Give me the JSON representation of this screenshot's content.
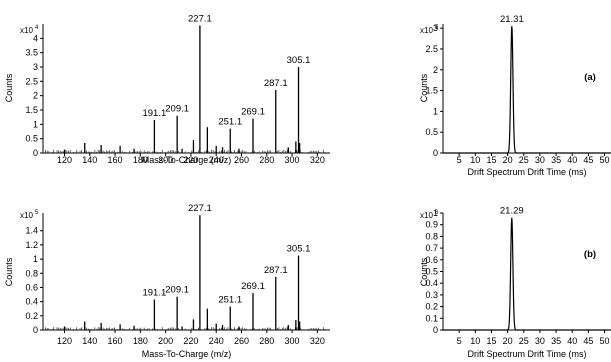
{
  "chart_data": [
    {
      "type": "bar",
      "panel": "a",
      "kind": "mass-spectrum",
      "multiplier": "x10",
      "multiplier_exp": "4",
      "ylabel": "Counts",
      "xlabel": "Mass-To-Charge (m/z)",
      "xlim": [
        103,
        330
      ],
      "ylim": [
        0,
        4.5
      ],
      "yticks": [
        0,
        0.5,
        1,
        1.5,
        2,
        2.5,
        3,
        3.5,
        4
      ],
      "ytick_labels": [
        "0",
        "0.5",
        "1",
        "1.5",
        "2",
        "2.5",
        "3",
        "3.5",
        "4"
      ],
      "xticks": [
        120,
        140,
        160,
        180,
        200,
        220,
        240,
        260,
        280,
        300,
        320
      ],
      "xtick_labels": [
        "120",
        "140",
        "160",
        "180",
        "200",
        "220",
        "240",
        "260",
        "280",
        "300",
        "320"
      ],
      "peaks": [
        {
          "x": 227.1,
          "y": 4.45,
          "label": "227.1"
        },
        {
          "x": 305.1,
          "y": 3.0,
          "label": "305.1"
        },
        {
          "x": 287.1,
          "y": 2.2,
          "label": "287.1"
        },
        {
          "x": 209.1,
          "y": 1.3,
          "label": "209.1"
        },
        {
          "x": 191.1,
          "y": 1.15,
          "label": "191.1"
        },
        {
          "x": 269.1,
          "y": 1.2,
          "label": "269.1"
        },
        {
          "x": 251.1,
          "y": 0.85,
          "label": "251.1"
        },
        {
          "x": 233,
          "y": 0.9
        },
        {
          "x": 222,
          "y": 0.45
        },
        {
          "x": 306,
          "y": 0.35
        },
        {
          "x": 136,
          "y": 0.35
        },
        {
          "x": 149,
          "y": 0.28
        },
        {
          "x": 164,
          "y": 0.25
        },
        {
          "x": 175,
          "y": 0.15
        },
        {
          "x": 120,
          "y": 0.12
        },
        {
          "x": 240,
          "y": 0.25
        },
        {
          "x": 245,
          "y": 0.2
        },
        {
          "x": 297,
          "y": 0.2
        },
        {
          "x": 303,
          "y": 0.4
        },
        {
          "x": 213,
          "y": 0.15
        },
        {
          "x": 258,
          "y": 0.15
        }
      ]
    },
    {
      "type": "line",
      "panel": "a",
      "kind": "drift-spectrum",
      "panel_label": "(a)",
      "multiplier": "x10",
      "multiplier_exp": "5",
      "ylabel": "Counts",
      "xlabel": "Drift Spectrum  Drift Time (ms)",
      "xlim": [
        0,
        52
      ],
      "ylim": [
        0,
        3.1
      ],
      "yticks": [
        0,
        0.5,
        1,
        1.5,
        2,
        2.5,
        3
      ],
      "ytick_labels": [
        "0",
        "0.5",
        "1",
        "1.5",
        "2",
        "2.5",
        "3"
      ],
      "xticks": [
        5,
        10,
        15,
        20,
        25,
        30,
        35,
        40,
        45,
        50
      ],
      "xtick_labels": [
        "5",
        "10",
        "15",
        "20",
        "25",
        "30",
        "35",
        "40",
        "45",
        "50"
      ],
      "peak": {
        "x": 21.31,
        "y": 3.05,
        "label": "21.31",
        "width": 0.8
      }
    },
    {
      "type": "bar",
      "panel": "b",
      "kind": "mass-spectrum",
      "multiplier": "x10",
      "multiplier_exp": "5",
      "ylabel": "Counts",
      "xlabel": "Mass-To-Charge (m/z)",
      "xlim": [
        103,
        330
      ],
      "ylim": [
        0,
        1.65
      ],
      "yticks": [
        0,
        0.2,
        0.4,
        0.6,
        0.8,
        1,
        1.2,
        1.4
      ],
      "ytick_labels": [
        "0",
        "0.2",
        "0.4",
        "0.6",
        "0.8",
        "1",
        "1.2",
        "1.4"
      ],
      "xticks": [
        120,
        140,
        160,
        180,
        200,
        220,
        240,
        260,
        280,
        300,
        320
      ],
      "xtick_labels": [
        "120",
        "140",
        "160",
        "180",
        "200",
        "220",
        "240",
        "260",
        "280",
        "300",
        "320"
      ],
      "peaks": [
        {
          "x": 227.1,
          "y": 1.62,
          "label": "227.1"
        },
        {
          "x": 305.1,
          "y": 1.05,
          "label": "305.1"
        },
        {
          "x": 287.1,
          "y": 0.75,
          "label": "287.1"
        },
        {
          "x": 209.1,
          "y": 0.47,
          "label": "209.1"
        },
        {
          "x": 191.1,
          "y": 0.43,
          "label": "191.1"
        },
        {
          "x": 269.1,
          "y": 0.52,
          "label": "269.1"
        },
        {
          "x": 251.1,
          "y": 0.33,
          "label": "251.1"
        },
        {
          "x": 233,
          "y": 0.3
        },
        {
          "x": 222,
          "y": 0.15
        },
        {
          "x": 306,
          "y": 0.12
        },
        {
          "x": 136,
          "y": 0.12
        },
        {
          "x": 149,
          "y": 0.1
        },
        {
          "x": 164,
          "y": 0.08
        },
        {
          "x": 175,
          "y": 0.06
        },
        {
          "x": 120,
          "y": 0.05
        },
        {
          "x": 240,
          "y": 0.09
        },
        {
          "x": 245,
          "y": 0.07
        },
        {
          "x": 297,
          "y": 0.07
        },
        {
          "x": 303,
          "y": 0.14
        },
        {
          "x": 213,
          "y": 0.05
        },
        {
          "x": 258,
          "y": 0.05
        }
      ]
    },
    {
      "type": "line",
      "panel": "b",
      "kind": "drift-spectrum",
      "panel_label": "(b)",
      "multiplier": "x10",
      "multiplier_exp": "6",
      "ylabel": "Counts",
      "xlabel": "Drift Spectrum  Drift Time (ms)",
      "xlim": [
        0,
        52
      ],
      "ylim": [
        0,
        1.0
      ],
      "yticks": [
        0,
        0.1,
        0.2,
        0.3,
        0.4,
        0.5,
        0.6,
        0.7,
        0.8,
        0.9,
        1
      ],
      "ytick_labels": [
        "0",
        "0.1",
        "0.2",
        "0.3",
        "0.4",
        "0.5",
        "0.6",
        "0.7",
        "0.8",
        "0.9",
        "1"
      ],
      "xticks": [
        5,
        10,
        15,
        20,
        25,
        30,
        35,
        40,
        45,
        50
      ],
      "xtick_labels": [
        "5",
        "10",
        "15",
        "20",
        "25",
        "30",
        "35",
        "40",
        "45",
        "50"
      ],
      "peak": {
        "x": 21.29,
        "y": 0.96,
        "label": "21.29",
        "width": 0.8
      }
    }
  ]
}
